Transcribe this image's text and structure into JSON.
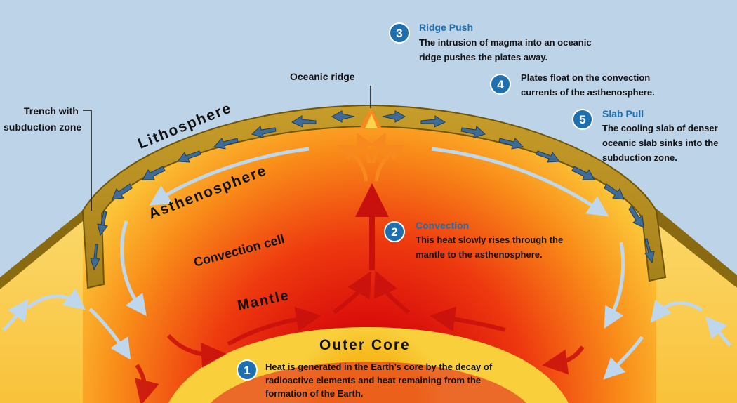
{
  "labels": {
    "oceanic_ridge": "Oceanic ridge",
    "trench_line1": "Trench with",
    "trench_line2": "subduction zone",
    "lithosphere": "Lithosphere",
    "asthenosphere": "Asthenosphere",
    "convection_cell": "Convection cell",
    "mantle": "Mantle",
    "outer_core": "Outer Core"
  },
  "notes": [
    {
      "number": "1",
      "title": "",
      "lines": [
        "Heat is generated in the Earth’s core by the decay of",
        "radioactive elements and heat remaining from the",
        "formation of the Earth."
      ]
    },
    {
      "number": "2",
      "title": "Convection",
      "lines": [
        "This heat slowly rises through the",
        "mantle to the asthenosphere."
      ]
    },
    {
      "number": "3",
      "title": "Ridge Push",
      "lines": [
        "The intrusion of magma into an oceanic",
        "ridge pushes the plates away."
      ]
    },
    {
      "number": "4",
      "title": "",
      "lines": [
        "Plates float on the convection",
        "currents of the asthenosphere."
      ]
    },
    {
      "number": "5",
      "title": "Slab Pull",
      "lines": [
        "The cooling slab of denser",
        "oceanic slab sinks into the",
        "subduction zone."
      ]
    }
  ],
  "colors": {
    "sky": "#bdd3e8",
    "plate": "#b48e22",
    "plate_edge": "#6f5508",
    "plate_arrow": "#3f6b97",
    "core": "#f7b81c",
    "mantle_hot": "#e9240c",
    "asthenosphere": "#fde163",
    "note_circle": "#1d6fb0",
    "cool_arrow": "#bfd7ec",
    "hot_arrow": "#c8100c"
  }
}
